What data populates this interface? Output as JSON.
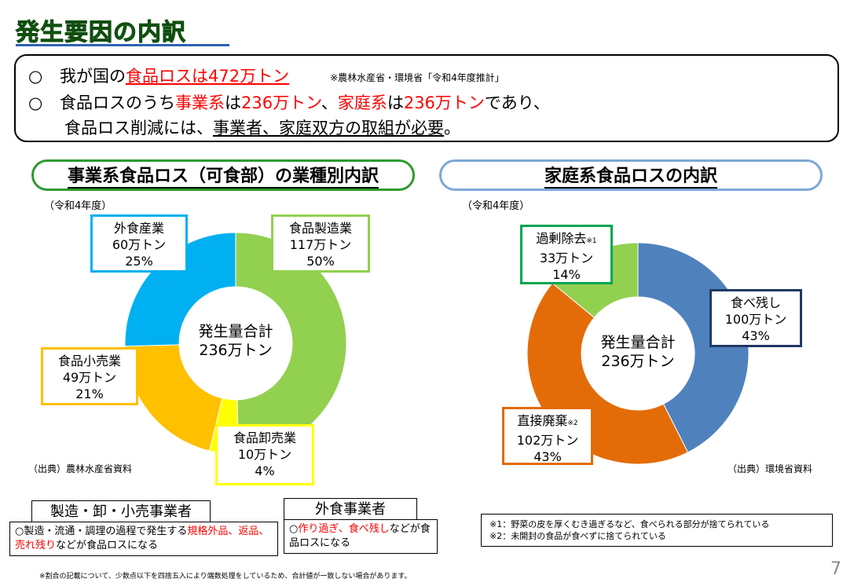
{
  "title": "発生要因の内訳",
  "summary": {
    "bullet": "○",
    "line1": {
      "prefix": "我が国の",
      "highlight": "食品ロスは472万トン",
      "note": "※農林水産省・環境省「令和4年度推計」"
    },
    "line2": {
      "p1": "食品ロスのうち",
      "r1": "事業系",
      "p2": "は",
      "r2": "236万トン",
      "p3": "、",
      "r3": "家庭系",
      "p4": "は",
      "r4": "236万トン",
      "p5": "であり、"
    },
    "line3": {
      "p1": "食品ロス削減には、",
      "u1": "事業者、家庭双方の取組が必要",
      "p2": "。"
    }
  },
  "business": {
    "header": "事業系食品ロス（可食部）の業種別内訳",
    "year": "（令和4年度）",
    "center_line1": "発生量合計",
    "center_line2": "236万トン",
    "source": "（出典）農林水産省資料",
    "labels": [
      {
        "name": "食品製造業",
        "amount": "117万トン",
        "pct": "50%"
      },
      {
        "name": "食品卸売業",
        "amount": "10万トン",
        "pct": "4%"
      },
      {
        "name": "食品小売業",
        "amount": "49万トン",
        "pct": "21%"
      },
      {
        "name": "外食産業",
        "amount": "60万トン",
        "pct": "25%"
      }
    ]
  },
  "household": {
    "header": "家庭系食品ロスの内訳",
    "year": "（令和4年度）",
    "center_line1": "発生量合計",
    "center_line2": "236万トン",
    "source": "（出典）環境省資料",
    "labels": [
      {
        "name": "食べ残し",
        "mark": "",
        "amount": "100万トン",
        "pct": "43%"
      },
      {
        "name": "直接廃棄",
        "mark": "※2",
        "amount": "102万トン",
        "pct": "43%"
      },
      {
        "name": "過剰除去",
        "mark": "※1",
        "amount": "33万トン",
        "pct": "14%"
      }
    ]
  },
  "chart_data": [
    {
      "type": "pie",
      "title": "事業系食品ロス（可食部）の業種別内訳",
      "subtitle": "（令和4年度）",
      "center_text": [
        "発生量合計",
        "236万トン"
      ],
      "categories": [
        "食品製造業",
        "食品卸売業",
        "食品小売業",
        "外食産業"
      ],
      "values": [
        117,
        10,
        49,
        60
      ],
      "percentages": [
        50,
        4,
        21,
        25
      ],
      "unit": "万トン",
      "colors": [
        "#92d050",
        "#ffff00",
        "#ffc000",
        "#00b0f0"
      ],
      "box_colors": [
        "#92d050",
        "#ffff00",
        "#ffc000",
        "#00b0f0"
      ]
    },
    {
      "type": "pie",
      "title": "家庭系食品ロスの内訳",
      "subtitle": "（令和4年度）",
      "center_text": [
        "発生量合計",
        "236万トン"
      ],
      "categories": [
        "食べ残し",
        "直接廃棄",
        "過剰除去"
      ],
      "values": [
        100,
        102,
        33
      ],
      "percentages": [
        43,
        43,
        14
      ],
      "unit": "万トン",
      "colors": [
        "#4f81bd",
        "#e36c09",
        "#92d050"
      ],
      "box_colors": [
        "#1f3864",
        "#e36c09",
        "#00a651"
      ]
    }
  ],
  "bottom": {
    "manufacturing_tab": "製造・卸・小売事業者",
    "manufacturing_desc": {
      "p1": "○製造・流通・調理の過程で発生する",
      "r1": "規格外品、返品、売れ残り",
      "p2": "などが食品ロスになる"
    },
    "restaurant_tab": "外食事業者",
    "restaurant_desc": {
      "p1": "○",
      "r1": "作り過ぎ、食べ残し",
      "p2": "などが食品ロスになる"
    },
    "notes": [
      "※1：野菜の皮を厚くむき過ぎるなど、食べられる部分が捨てられている",
      "※2：未開封の食品が食べずに捨てられている"
    ],
    "footnote": "※割合の記載について、少数点以下を四捨五入により端数処理をしているため、合計値が一致しない場合があります。",
    "page_number": "7"
  }
}
